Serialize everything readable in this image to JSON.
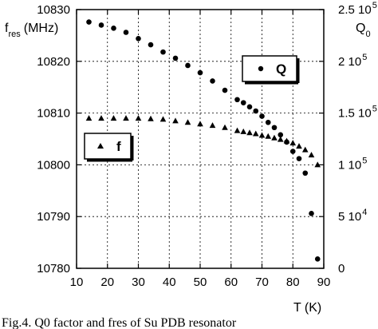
{
  "chart_data": {
    "type": "scatter",
    "title": "",
    "grid": true,
    "x": {
      "label": "T (K)",
      "range": [
        10,
        90
      ],
      "ticks": [
        10,
        20,
        30,
        40,
        50,
        60,
        70,
        80,
        90
      ],
      "tick_labels": [
        "10",
        "20",
        "30",
        "40",
        "50",
        "60",
        "70",
        "80",
        "90"
      ]
    },
    "y_left": {
      "label": "f res (MHz)",
      "label_main": "f",
      "label_sub": "res",
      "label_unit": "(MHz)",
      "range": [
        10780,
        10830
      ],
      "ticks": [
        10780,
        10790,
        10800,
        10810,
        10820,
        10830
      ],
      "tick_labels": [
        "10780",
        "10790",
        "10800",
        "10810",
        "10820",
        "10830"
      ]
    },
    "y_right": {
      "label": "Q 0",
      "label_main": "Q",
      "label_sub": "0",
      "range": [
        0,
        250000
      ],
      "ticks": [
        0,
        50000,
        100000,
        150000,
        200000,
        250000
      ],
      "tick_labels": [
        {
          "mantissa": "0",
          "exponent": ""
        },
        {
          "mantissa": "5 10",
          "exponent": "4"
        },
        {
          "mantissa": "1 10",
          "exponent": "5"
        },
        {
          "mantissa": "1.5 10",
          "exponent": "5"
        },
        {
          "mantissa": "2 10",
          "exponent": "5"
        },
        {
          "mantissa": "2.5 10",
          "exponent": "5"
        }
      ]
    },
    "series": [
      {
        "name": "f",
        "axis": "left",
        "marker": "triangle",
        "points": [
          [
            14,
            10809
          ],
          [
            18,
            10809
          ],
          [
            22,
            10809
          ],
          [
            26,
            10809
          ],
          [
            30,
            10809
          ],
          [
            34,
            10808.9
          ],
          [
            38,
            10808.8
          ],
          [
            42,
            10808.5
          ],
          [
            46,
            10808.2
          ],
          [
            50,
            10807.9
          ],
          [
            54,
            10807.6
          ],
          [
            58,
            10807.2
          ],
          [
            62,
            10806.6
          ],
          [
            64,
            10806.4
          ],
          [
            66,
            10806.2
          ],
          [
            68,
            10806
          ],
          [
            70,
            10805.7
          ],
          [
            72,
            10805.5
          ],
          [
            74,
            10805.2
          ],
          [
            76,
            10804.9
          ],
          [
            78,
            10804.6
          ],
          [
            80,
            10804.2
          ],
          [
            82,
            10803.6
          ],
          [
            84,
            10802.9
          ],
          [
            86,
            10801.9
          ],
          [
            88,
            10800
          ]
        ]
      },
      {
        "name": "Q",
        "axis": "right",
        "marker": "circle",
        "points": [
          [
            14,
            238000
          ],
          [
            18,
            235000
          ],
          [
            22,
            232000
          ],
          [
            26,
            228000
          ],
          [
            30,
            222000
          ],
          [
            34,
            216000
          ],
          [
            38,
            209000
          ],
          [
            42,
            203000
          ],
          [
            46,
            196000
          ],
          [
            50,
            189000
          ],
          [
            54,
            181000
          ],
          [
            58,
            172000
          ],
          [
            62,
            163000
          ],
          [
            64,
            160000
          ],
          [
            66,
            156000
          ],
          [
            68,
            152000
          ],
          [
            70,
            147000
          ],
          [
            72,
            141000
          ],
          [
            74,
            136000
          ],
          [
            76,
            129000
          ],
          [
            78,
            122000
          ],
          [
            80,
            113000
          ],
          [
            82,
            106000
          ],
          [
            84,
            92000
          ],
          [
            86,
            53000
          ],
          [
            88,
            9000
          ]
        ]
      }
    ],
    "legends": [
      {
        "series": "Q",
        "marker": "circle",
        "text": "Q"
      },
      {
        "series": "f",
        "marker": "triangle",
        "text": "f"
      }
    ]
  },
  "caption": "Fig.4. Q0 factor and fres of Su PDB resonator"
}
